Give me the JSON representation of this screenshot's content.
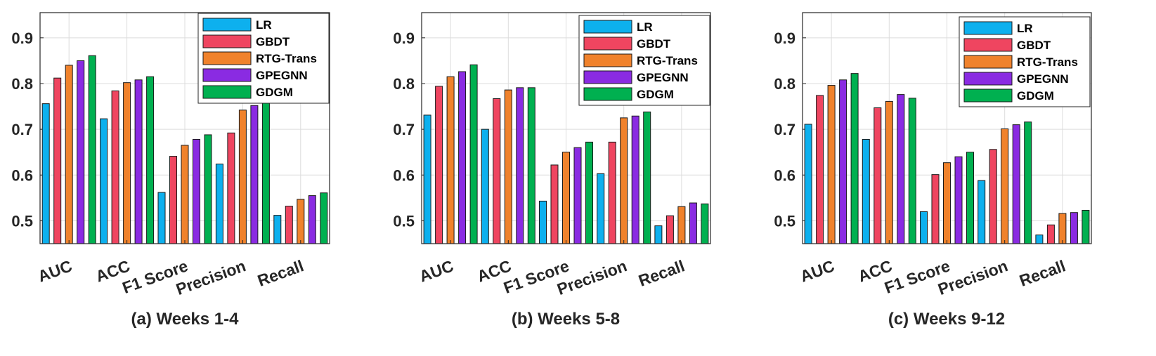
{
  "chart_data": [
    {
      "type": "bar",
      "title": "(a) Weeks 1-4",
      "categories": [
        "AUC",
        "ACC",
        "F1 Score",
        "Precision",
        "Recall"
      ],
      "ylim": [
        0.45,
        0.955
      ],
      "yticks": [
        "0.5",
        "0.6",
        "0.7",
        "0.8",
        "0.9"
      ],
      "grid": true,
      "legend_position": "top-right",
      "series": [
        {
          "name": "LR",
          "values": [
            0.756,
            0.723,
            0.562,
            0.624,
            0.512
          ]
        },
        {
          "name": "GBDT",
          "values": [
            0.812,
            0.784,
            0.641,
            0.692,
            0.532
          ]
        },
        {
          "name": "RTG-Trans",
          "values": [
            0.84,
            0.802,
            0.665,
            0.742,
            0.547
          ]
        },
        {
          "name": "GPEGNN",
          "values": [
            0.85,
            0.808,
            0.678,
            0.752,
            0.555
          ]
        },
        {
          "name": "GDGM",
          "values": [
            0.861,
            0.815,
            0.688,
            0.77,
            0.561
          ]
        }
      ]
    },
    {
      "type": "bar",
      "title": "(b) Weeks 5-8",
      "categories": [
        "AUC",
        "ACC",
        "F1 Score",
        "Precision",
        "Recall"
      ],
      "ylim": [
        0.45,
        0.955
      ],
      "yticks": [
        "0.5",
        "0.6",
        "0.7",
        "0.8",
        "0.9"
      ],
      "grid": true,
      "legend_position": "top-right",
      "series": [
        {
          "name": "LR",
          "values": [
            0.731,
            0.7,
            0.543,
            0.603,
            0.489
          ]
        },
        {
          "name": "GBDT",
          "values": [
            0.794,
            0.767,
            0.622,
            0.672,
            0.511
          ]
        },
        {
          "name": "RTG-Trans",
          "values": [
            0.815,
            0.786,
            0.65,
            0.725,
            0.531
          ]
        },
        {
          "name": "GPEGNN",
          "values": [
            0.826,
            0.791,
            0.66,
            0.729,
            0.539
          ]
        },
        {
          "name": "GDGM",
          "values": [
            0.841,
            0.791,
            0.672,
            0.738,
            0.537
          ]
        }
      ]
    },
    {
      "type": "bar",
      "title": "(c) Weeks 9-12",
      "categories": [
        "AUC",
        "ACC",
        "F1 Score",
        "Precision",
        "Recall"
      ],
      "ylim": [
        0.45,
        0.955
      ],
      "yticks": [
        "0.5",
        "0.6",
        "0.7",
        "0.8",
        "0.9"
      ],
      "grid": true,
      "legend_position": "top-right",
      "series": [
        {
          "name": "LR",
          "values": [
            0.711,
            0.678,
            0.52,
            0.588,
            0.469
          ]
        },
        {
          "name": "GBDT",
          "values": [
            0.774,
            0.747,
            0.601,
            0.656,
            0.491
          ]
        },
        {
          "name": "RTG-Trans",
          "values": [
            0.796,
            0.761,
            0.627,
            0.701,
            0.516
          ]
        },
        {
          "name": "GPEGNN",
          "values": [
            0.808,
            0.776,
            0.64,
            0.71,
            0.518
          ]
        },
        {
          "name": "GDGM",
          "values": [
            0.822,
            0.768,
            0.65,
            0.716,
            0.523
          ]
        }
      ]
    }
  ],
  "colors": {
    "LR": "#0db0ee",
    "GBDT": "#ef4560",
    "RTG-Trans": "#f0822c",
    "GPEGNN": "#8a2be2",
    "GDGM": "#00b050"
  }
}
